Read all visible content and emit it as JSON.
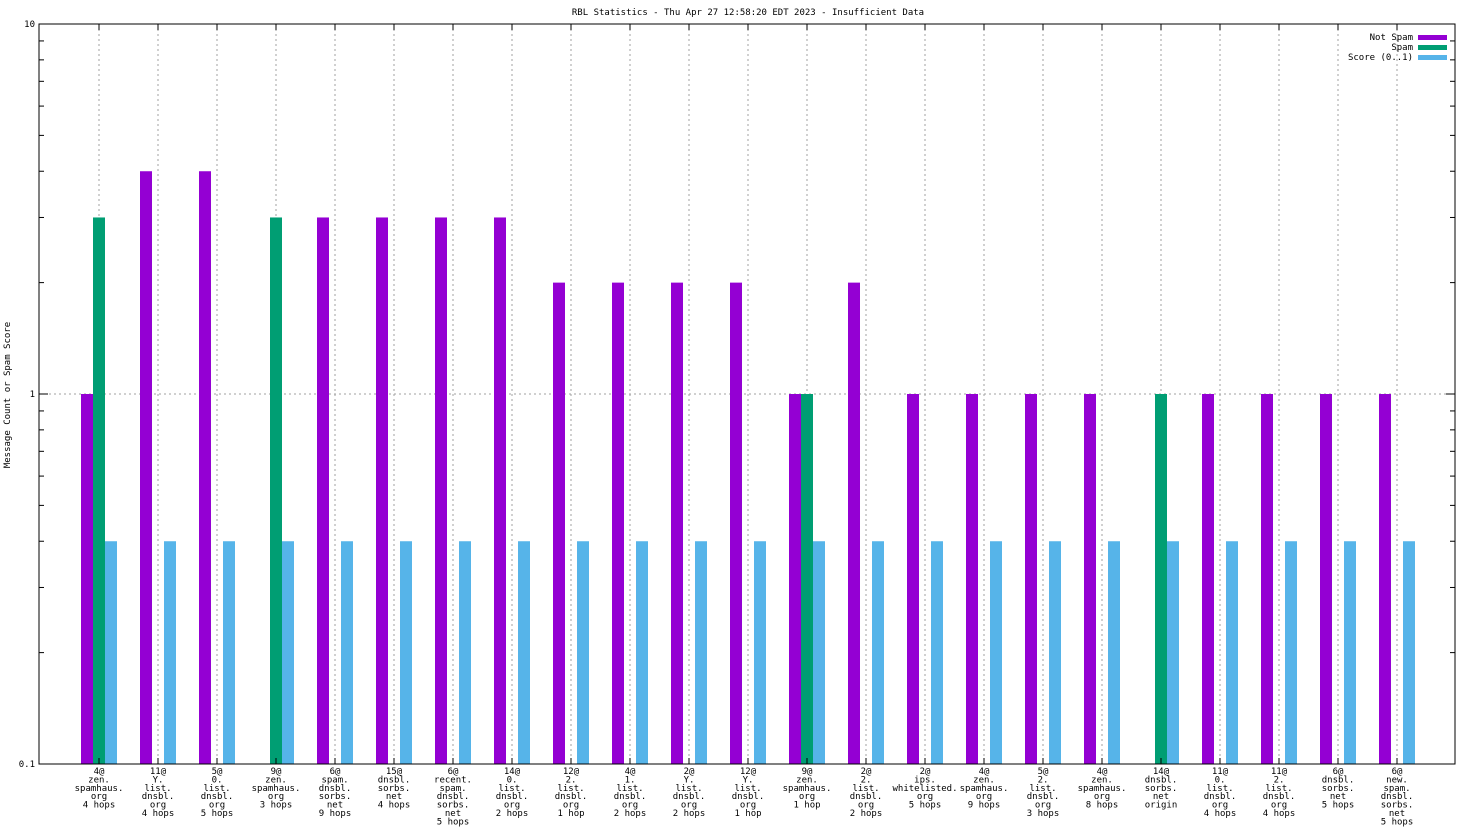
{
  "chart_data": {
    "type": "bar",
    "title": "RBL Statistics - Thu Apr 27 12:58:20 EDT 2023 - Insufficient Data",
    "ylabel": "Message Count or Spam Score",
    "xlabel": "",
    "y_scale": "log",
    "ylim": [
      0.1,
      10
    ],
    "y_ticks": [
      {
        "value": 0.1,
        "label": "0.1"
      },
      {
        "value": 1,
        "label": "1"
      },
      {
        "value": 10,
        "label": "10"
      }
    ],
    "grid": true,
    "legend_placement": "top-right",
    "categories": [
      [
        "4@",
        "zen.",
        "spamhaus.",
        "org",
        "4 hops"
      ],
      [
        "11@",
        "Y.",
        "list.",
        "dnsbl.",
        "org",
        "4 hops"
      ],
      [
        "5@",
        "0.",
        "list.",
        "dnsbl.",
        "org",
        "5 hops"
      ],
      [
        "9@",
        "zen.",
        "spamhaus.",
        "org",
        "3 hops"
      ],
      [
        "6@",
        "spam.",
        "dnsbl.",
        "sorbs.",
        "net",
        "9 hops"
      ],
      [
        "15@",
        "dnsbl.",
        "sorbs.",
        "net",
        "4 hops"
      ],
      [
        "6@",
        "recent.",
        "spam.",
        "dnsbl.",
        "sorbs.",
        "net",
        "5 hops"
      ],
      [
        "14@",
        "0.",
        "list.",
        "dnsbl.",
        "org",
        "2 hops"
      ],
      [
        "12@",
        "2.",
        "list.",
        "dnsbl.",
        "org",
        "1 hop"
      ],
      [
        "4@",
        "1.",
        "list.",
        "dnsbl.",
        "org",
        "2 hops"
      ],
      [
        "2@",
        "Y.",
        "list.",
        "dnsbl.",
        "org",
        "2 hops"
      ],
      [
        "12@",
        "Y.",
        "list.",
        "dnsbl.",
        "org",
        "1 hop"
      ],
      [
        "9@",
        "zen.",
        "spamhaus.",
        "org",
        "1 hop"
      ],
      [
        "2@",
        "2.",
        "list.",
        "dnsbl.",
        "org",
        "2 hops"
      ],
      [
        "2@",
        "ips.",
        "whitelisted.",
        "org",
        "5 hops"
      ],
      [
        "4@",
        "zen.",
        "spamhaus.",
        "org",
        "9 hops"
      ],
      [
        "5@",
        "2.",
        "list.",
        "dnsbl.",
        "org",
        "3 hops"
      ],
      [
        "4@",
        "zen.",
        "spamhaus.",
        "org",
        "8 hops"
      ],
      [
        "14@",
        "dnsbl.",
        "sorbs.",
        "net",
        "origin"
      ],
      [
        "11@",
        "0.",
        "list.",
        "dnsbl.",
        "org",
        "4 hops"
      ],
      [
        "11@",
        "2.",
        "list.",
        "dnsbl.",
        "org",
        "4 hops"
      ],
      [
        "6@",
        "dnsbl.",
        "sorbs.",
        "net",
        "5 hops"
      ],
      [
        "6@",
        "new.",
        "spam.",
        "dnsbl.",
        "sorbs.",
        "net",
        "5 hops"
      ]
    ],
    "series": [
      {
        "name": "Not Spam",
        "color": "#9400d3",
        "values": [
          1,
          4,
          4,
          null,
          3,
          3,
          3,
          3,
          2,
          2,
          2,
          2,
          1,
          2,
          1,
          1,
          1,
          1,
          null,
          1,
          1,
          1,
          1
        ]
      },
      {
        "name": "Spam",
        "color": "#009e73",
        "values": [
          3,
          null,
          null,
          3,
          null,
          null,
          null,
          null,
          null,
          null,
          null,
          null,
          1,
          null,
          null,
          null,
          null,
          null,
          1,
          null,
          null,
          null,
          null
        ]
      },
      {
        "name": "Score (0..1)",
        "color": "#56b4e9",
        "values": [
          0.4,
          0.4,
          0.4,
          0.4,
          0.4,
          0.4,
          0.4,
          0.4,
          0.4,
          0.4,
          0.4,
          0.4,
          0.4,
          0.4,
          0.4,
          0.4,
          0.4,
          0.4,
          0.4,
          0.4,
          0.4,
          0.4,
          0.4
        ]
      }
    ]
  }
}
